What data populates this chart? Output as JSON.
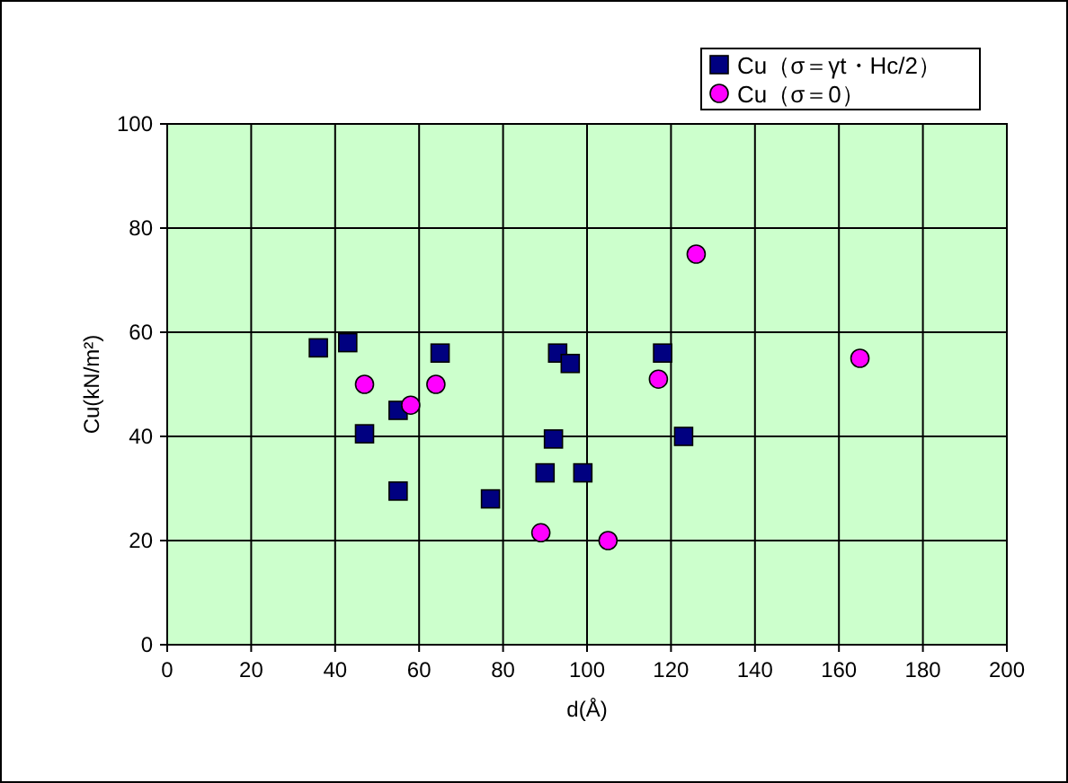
{
  "chart_data": {
    "type": "scatter",
    "xlabel": "d(Å)",
    "ylabel": "Cu(kN/m²)",
    "xlim": [
      0,
      200
    ],
    "ylim": [
      0,
      100
    ],
    "xticks": [
      0,
      20,
      40,
      60,
      80,
      100,
      120,
      140,
      160,
      180,
      200
    ],
    "yticks": [
      0,
      20,
      40,
      60,
      80,
      100
    ],
    "grid": true,
    "legend": "top right",
    "series": [
      {
        "name": "Cu（σ＝γt・Hc/2）",
        "color": "#000080",
        "marker": "square",
        "x": [
          36,
          43,
          47,
          55,
          55,
          65,
          77,
          90,
          92,
          93,
          96,
          99,
          118,
          123
        ],
        "values": [
          57,
          58,
          40.5,
          45,
          29.5,
          56,
          28,
          33,
          39.5,
          56,
          54,
          33,
          56,
          40
        ]
      },
      {
        "name": "Cu（σ＝0）",
        "color": "#ff00ff",
        "marker": "circle",
        "x": [
          47,
          58,
          64,
          89,
          105,
          117,
          126,
          165
        ],
        "values": [
          50,
          46,
          50,
          21.5,
          20,
          51,
          75,
          55
        ]
      }
    ]
  }
}
